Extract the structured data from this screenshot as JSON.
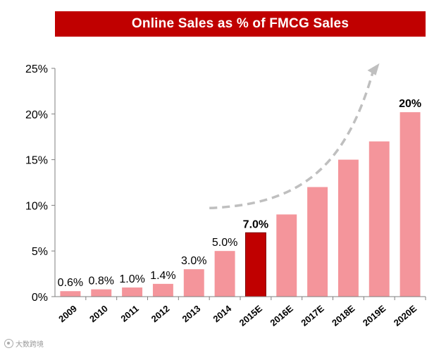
{
  "chart_data": {
    "type": "bar",
    "title": "Online Sales as % of FMCG Sales",
    "categories": [
      "2009",
      "2010",
      "2011",
      "2012",
      "2013",
      "2014",
      "2015E",
      "2016E",
      "2017E",
      "2018E",
      "2019E",
      "2020E"
    ],
    "values": [
      0.6,
      0.8,
      1.0,
      1.4,
      3.0,
      5.0,
      7.0,
      9.0,
      12.0,
      15.0,
      17.0,
      20.2
    ],
    "data_labels": [
      "0.6%",
      "0.8%",
      "1.0%",
      "1.4%",
      "3.0%",
      "5.0%",
      "7.0%",
      "",
      "",
      "",
      "",
      "20%"
    ],
    "bold_labels": [
      "7.0%",
      "20%"
    ],
    "highlight_category": "2015E",
    "ylim": [
      0,
      25
    ],
    "yticks": [
      0,
      5,
      10,
      15,
      20,
      25
    ],
    "ytick_labels": [
      "0%",
      "5%",
      "10%",
      "15%",
      "20%",
      "25%"
    ],
    "xlabel": "",
    "ylabel": "",
    "grid": false,
    "legend": "none",
    "annotation": "dashed upward trend arrow over forecast years"
  },
  "colors": {
    "title_bg": "#c00000",
    "title_text": "#ffffff",
    "bar": "#f4959b",
    "highlight_bar": "#c00000",
    "axis": "#7f7f7f",
    "trend_arrow": "#bfbfbf"
  },
  "watermark": {
    "text": "大数跨境"
  }
}
